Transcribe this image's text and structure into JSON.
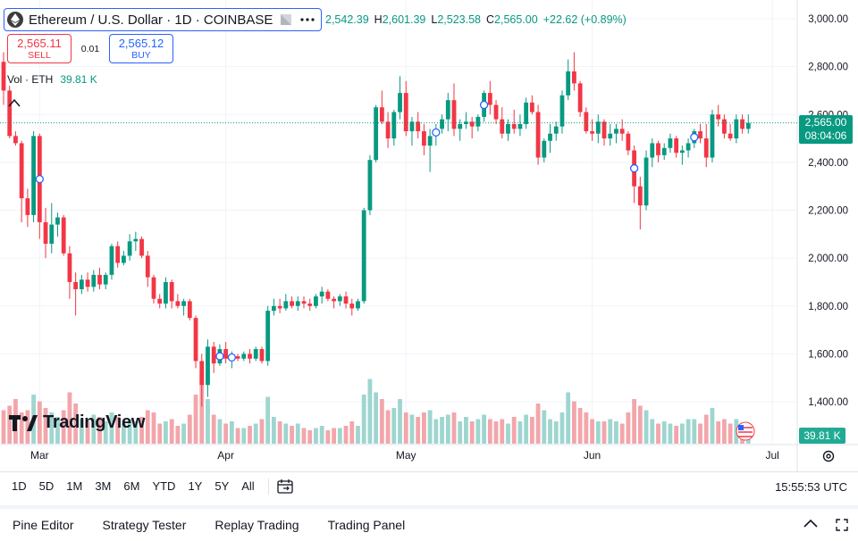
{
  "symbol": {
    "title": "Ethereum / U.S. Dollar · 1D · COINBASE",
    "icon": "ethereum-icon"
  },
  "ohlc": {
    "o_value": "2,542.39",
    "h_label": "H",
    "h_value": "2,601.39",
    "l_label": "L",
    "l_value": "2,523.58",
    "c_label": "C",
    "c_value": "2,565.00",
    "change": "+22.62 (+0.89%)"
  },
  "trade": {
    "sell_price": "2,565.11",
    "sell_label": "SELL",
    "spread": "0.01",
    "buy_price": "2,565.12",
    "buy_label": "BUY"
  },
  "volume_legend": {
    "label": "Vol · ETH",
    "value": "39.81 K"
  },
  "logo_text": "TradingView",
  "price_axis": {
    "last_price": "2,565.00",
    "countdown": "08:04:06",
    "volume_tag": "39.81 K"
  },
  "colors": {
    "up": "#089981",
    "down": "#f23645",
    "up_volume": "#9ed6cf",
    "down_volume": "#f2a6ab",
    "grid": "#f0f3fa"
  },
  "range_buttons": [
    "1D",
    "5D",
    "1M",
    "3M",
    "6M",
    "YTD",
    "1Y",
    "5Y",
    "All"
  ],
  "clock": "15:55:53 UTC",
  "panel_tabs": [
    "Pine Editor",
    "Strategy Tester",
    "Replay Trading",
    "Trading Panel"
  ],
  "chart_data": {
    "type": "candlestick",
    "title": "Ethereum / U.S. Dollar · 1D · COINBASE",
    "y_ticks": [
      3000,
      2800,
      2600,
      2400,
      2200,
      2000,
      1800,
      1600,
      1400
    ],
    "y_tick_labels": [
      "3,000.00",
      "2,800.00",
      "2,600.00",
      "2,400.00",
      "2,200.00",
      "2,000.00",
      "1,800.00",
      "1,600.00",
      "1,400.00"
    ],
    "ylim": [
      1330,
      3030
    ],
    "x_labels": [
      "Mar",
      "Apr",
      "May",
      "Jun",
      "Jul"
    ],
    "x_label_dates": [
      "2025-03-01",
      "2025-04-01",
      "2025-05-01",
      "2025-06-01",
      "2025-07-01"
    ],
    "start_date": "2025-02-23",
    "last_price": 2565.0,
    "candles": [
      [
        2820,
        2860,
        2640,
        2700
      ],
      [
        2700,
        2720,
        2500,
        2510
      ],
      [
        2510,
        2530,
        2470,
        2480
      ],
      [
        2480,
        2490,
        2150,
        2250
      ],
      [
        2250,
        2290,
        2130,
        2180
      ],
      [
        2180,
        2530,
        2150,
        2510
      ],
      [
        2510,
        2520,
        2080,
        2150
      ],
      [
        2150,
        2210,
        2000,
        2060
      ],
      [
        2060,
        2230,
        2020,
        2140
      ],
      [
        2140,
        2190,
        2090,
        2170
      ],
      [
        2170,
        2180,
        2010,
        2020
      ],
      [
        2020,
        2050,
        1830,
        1900
      ],
      [
        1900,
        1940,
        1760,
        1870
      ],
      [
        1870,
        1930,
        1850,
        1910
      ],
      [
        1910,
        1940,
        1860,
        1880
      ],
      [
        1880,
        1950,
        1860,
        1930
      ],
      [
        1930,
        1960,
        1870,
        1890
      ],
      [
        1890,
        1940,
        1870,
        1930
      ],
      [
        1930,
        2060,
        1910,
        2050
      ],
      [
        2050,
        2070,
        1960,
        1980
      ],
      [
        1980,
        2030,
        1970,
        2010
      ],
      [
        2010,
        2100,
        1990,
        2070
      ],
      [
        2070,
        2110,
        2030,
        2080
      ],
      [
        2080,
        2090,
        2000,
        2010
      ],
      [
        2010,
        2030,
        1880,
        1920
      ],
      [
        1920,
        1930,
        1810,
        1830
      ],
      [
        1830,
        1850,
        1790,
        1810
      ],
      [
        1810,
        1920,
        1790,
        1900
      ],
      [
        1900,
        1910,
        1790,
        1820
      ],
      [
        1820,
        1850,
        1790,
        1800
      ],
      [
        1800,
        1830,
        1760,
        1820
      ],
      [
        1820,
        1830,
        1740,
        1750
      ],
      [
        1750,
        1760,
        1540,
        1570
      ],
      [
        1570,
        1600,
        1380,
        1470
      ],
      [
        1470,
        1660,
        1420,
        1630
      ],
      [
        1630,
        1650,
        1520,
        1560
      ],
      [
        1560,
        1640,
        1550,
        1620
      ],
      [
        1620,
        1650,
        1560,
        1580
      ],
      [
        1580,
        1610,
        1540,
        1590
      ],
      [
        1590,
        1600,
        1570,
        1580
      ],
      [
        1580,
        1610,
        1570,
        1600
      ],
      [
        1600,
        1620,
        1560,
        1580
      ],
      [
        1580,
        1630,
        1570,
        1620
      ],
      [
        1620,
        1630,
        1560,
        1570
      ],
      [
        1570,
        1800,
        1550,
        1780
      ],
      [
        1780,
        1830,
        1760,
        1800
      ],
      [
        1800,
        1830,
        1770,
        1790
      ],
      [
        1790,
        1850,
        1780,
        1820
      ],
      [
        1820,
        1840,
        1790,
        1800
      ],
      [
        1800,
        1840,
        1780,
        1820
      ],
      [
        1820,
        1840,
        1790,
        1810
      ],
      [
        1810,
        1830,
        1780,
        1800
      ],
      [
        1800,
        1850,
        1790,
        1840
      ],
      [
        1840,
        1880,
        1810,
        1860
      ],
      [
        1860,
        1870,
        1820,
        1830
      ],
      [
        1830,
        1840,
        1790,
        1820
      ],
      [
        1820,
        1850,
        1800,
        1840
      ],
      [
        1840,
        1860,
        1790,
        1810
      ],
      [
        1810,
        1830,
        1760,
        1790
      ],
      [
        1790,
        1830,
        1780,
        1820
      ],
      [
        1820,
        2210,
        1810,
        2200
      ],
      [
        2200,
        2430,
        2180,
        2410
      ],
      [
        2410,
        2640,
        2400,
        2630
      ],
      [
        2630,
        2700,
        2560,
        2570
      ],
      [
        2570,
        2610,
        2460,
        2500
      ],
      [
        2500,
        2620,
        2470,
        2610
      ],
      [
        2610,
        2760,
        2580,
        2690
      ],
      [
        2690,
        2740,
        2510,
        2530
      ],
      [
        2530,
        2590,
        2470,
        2570
      ],
      [
        2570,
        2610,
        2500,
        2530
      ],
      [
        2530,
        2560,
        2430,
        2470
      ],
      [
        2470,
        2540,
        2360,
        2510
      ],
      [
        2510,
        2560,
        2470,
        2540
      ],
      [
        2540,
        2600,
        2520,
        2580
      ],
      [
        2580,
        2690,
        2530,
        2660
      ],
      [
        2660,
        2730,
        2510,
        2540
      ],
      [
        2540,
        2580,
        2490,
        2560
      ],
      [
        2560,
        2610,
        2540,
        2570
      ],
      [
        2570,
        2590,
        2500,
        2550
      ],
      [
        2550,
        2600,
        2530,
        2590
      ],
      [
        2590,
        2700,
        2570,
        2690
      ],
      [
        2690,
        2740,
        2600,
        2640
      ],
      [
        2640,
        2660,
        2560,
        2580
      ],
      [
        2580,
        2630,
        2500,
        2520
      ],
      [
        2520,
        2580,
        2490,
        2560
      ],
      [
        2560,
        2620,
        2520,
        2540
      ],
      [
        2540,
        2600,
        2510,
        2560
      ],
      [
        2560,
        2670,
        2540,
        2650
      ],
      [
        2650,
        2680,
        2600,
        2610
      ],
      [
        2610,
        2640,
        2390,
        2420
      ],
      [
        2420,
        2500,
        2400,
        2490
      ],
      [
        2490,
        2560,
        2440,
        2520
      ],
      [
        2520,
        2570,
        2490,
        2550
      ],
      [
        2550,
        2700,
        2520,
        2680
      ],
      [
        2680,
        2830,
        2660,
        2780
      ],
      [
        2780,
        2860,
        2700,
        2730
      ],
      [
        2730,
        2740,
        2590,
        2610
      ],
      [
        2610,
        2630,
        2520,
        2530
      ],
      [
        2530,
        2580,
        2490,
        2520
      ],
      [
        2520,
        2600,
        2480,
        2570
      ],
      [
        2570,
        2580,
        2470,
        2500
      ],
      [
        2500,
        2560,
        2470,
        2520
      ],
      [
        2520,
        2560,
        2480,
        2540
      ],
      [
        2540,
        2580,
        2490,
        2520
      ],
      [
        2520,
        2530,
        2430,
        2450
      ],
      [
        2450,
        2470,
        2230,
        2300
      ],
      [
        2300,
        2340,
        2120,
        2220
      ],
      [
        2220,
        2450,
        2200,
        2420
      ],
      [
        2420,
        2500,
        2380,
        2480
      ],
      [
        2480,
        2490,
        2400,
        2430
      ],
      [
        2430,
        2480,
        2410,
        2460
      ],
      [
        2460,
        2520,
        2440,
        2500
      ],
      [
        2500,
        2510,
        2420,
        2440
      ],
      [
        2440,
        2470,
        2390,
        2450
      ],
      [
        2450,
        2500,
        2420,
        2480
      ],
      [
        2480,
        2540,
        2460,
        2530
      ],
      [
        2530,
        2560,
        2480,
        2500
      ],
      [
        2500,
        2560,
        2380,
        2420
      ],
      [
        2420,
        2620,
        2400,
        2600
      ],
      [
        2600,
        2640,
        2550,
        2580
      ],
      [
        2580,
        2600,
        2500,
        2520
      ],
      [
        2520,
        2560,
        2490,
        2500
      ],
      [
        2500,
        2600,
        2480,
        2580
      ],
      [
        2580,
        2600,
        2520,
        2540
      ],
      [
        2540,
        2600,
        2520,
        2565
      ]
    ],
    "volumes": [
      30,
      34,
      40,
      28,
      30,
      44,
      38,
      32,
      28,
      24,
      30,
      46,
      36,
      22,
      20,
      26,
      24,
      20,
      28,
      24,
      18,
      22,
      20,
      24,
      30,
      28,
      18,
      20,
      22,
      16,
      18,
      26,
      44,
      64,
      40,
      26,
      22,
      18,
      20,
      14,
      14,
      16,
      18,
      22,
      42,
      24,
      20,
      18,
      16,
      18,
      14,
      12,
      14,
      16,
      12,
      14,
      14,
      16,
      20,
      16,
      44,
      58,
      46,
      40,
      30,
      32,
      40,
      28,
      26,
      24,
      28,
      30,
      22,
      24,
      26,
      28,
      20,
      24,
      20,
      22,
      26,
      22,
      20,
      22,
      18,
      24,
      20,
      26,
      24,
      36,
      30,
      22,
      20,
      28,
      46,
      38,
      32,
      28,
      22,
      20,
      20,
      22,
      20,
      18,
      28,
      40,
      34,
      30,
      22,
      18,
      20,
      18,
      16,
      18,
      22,
      22,
      18,
      26,
      32,
      20,
      22,
      18,
      22,
      16,
      14
    ],
    "markers": [
      6,
      36,
      38,
      72,
      80,
      105,
      115
    ]
  }
}
